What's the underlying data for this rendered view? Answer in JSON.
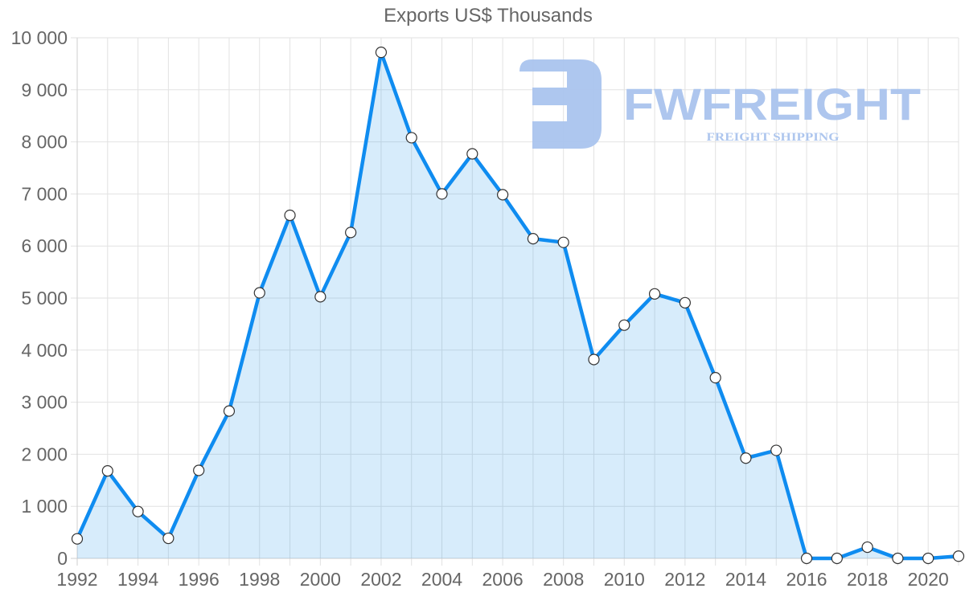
{
  "chart": {
    "title": "Exports US$ Thousands",
    "colors": {
      "line": "#0f8cf0",
      "fill": "#d8ebfc",
      "marker_fill": "#ffffff",
      "marker_stroke": "#333333",
      "grid": "#e2e2e2",
      "text": "#666666",
      "watermark": "#aac4ee"
    }
  },
  "watermark": {
    "brand": "FWFREIGHT",
    "tagline": "FREIGHT SHIPPING"
  },
  "chart_data": {
    "type": "area",
    "title": "Exports US$ Thousands",
    "xlabel": "",
    "ylabel": "",
    "x": [
      1992,
      1993,
      1994,
      1995,
      1996,
      1997,
      1998,
      1999,
      2000,
      2001,
      2002,
      2003,
      2004,
      2005,
      2006,
      2007,
      2008,
      2009,
      2010,
      2011,
      2012,
      2013,
      2014,
      2015,
      2016,
      2017,
      2018,
      2019,
      2020,
      2021
    ],
    "series": [
      {
        "name": "Exports US$ Thousands",
        "values": [
          375,
          1680,
          900,
          385,
          1690,
          2830,
          5100,
          6590,
          5025,
          6260,
          9720,
          8080,
          7000,
          7770,
          6985,
          6140,
          6070,
          3820,
          4480,
          5080,
          4910,
          3470,
          1925,
          2075,
          0,
          0,
          215,
          0,
          0,
          42
        ]
      }
    ],
    "ylim": [
      0,
      10000
    ],
    "yticks": [
      "0",
      "1 000",
      "2 000",
      "3 000",
      "4 000",
      "5 000",
      "6 000",
      "7 000",
      "8 000",
      "9 000",
      "10 000"
    ],
    "yticks_values": [
      0,
      1000,
      2000,
      3000,
      4000,
      5000,
      6000,
      7000,
      8000,
      9000,
      10000
    ],
    "xticks": [
      "1992",
      "1994",
      "1996",
      "1998",
      "2000",
      "2002",
      "2004",
      "2006",
      "2008",
      "2010",
      "2012",
      "2014",
      "2016",
      "2018",
      "2020"
    ],
    "grid": true,
    "legend": "none"
  }
}
